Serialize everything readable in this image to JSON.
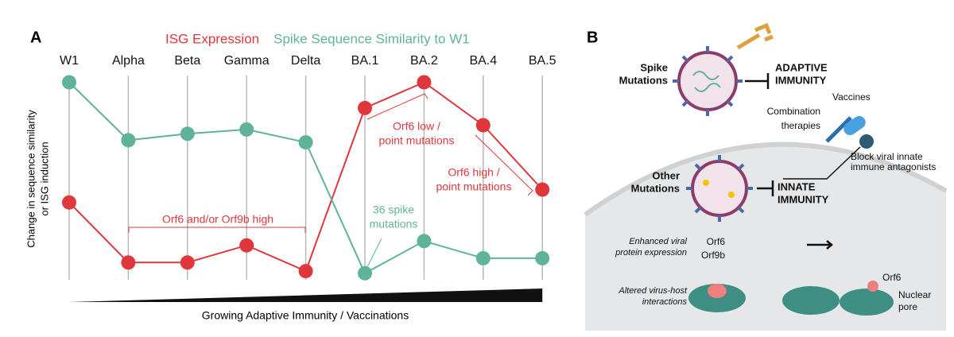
{
  "chart_data": {
    "type": "line",
    "panel_label": "A",
    "categories": [
      "W1",
      "Alpha",
      "Beta",
      "Gamma",
      "Delta",
      "BA.1",
      "BA.2",
      "BA.4",
      "BA.5"
    ],
    "series": [
      {
        "name": "ISG Expression",
        "color": "#e0373c",
        "values": [
          39,
          11,
          11,
          19,
          7,
          83,
          95,
          75,
          45
        ]
      },
      {
        "name": "Spike Sequence Similarity to W1",
        "color": "#5fb39a",
        "values": [
          95,
          68,
          71,
          73,
          67,
          6,
          21,
          13,
          13
        ]
      }
    ],
    "ylim": [
      0,
      100
    ],
    "y_label": [
      "Change in sequence similarity",
      "or ISG induction"
    ],
    "x_label": "Growing Adaptive Immunity / Vaccinations",
    "annotations": [
      {
        "lines": [
          "Orf6 and/or Orf9b high"
        ],
        "color": "#e0373c"
      },
      {
        "lines": [
          "Orf6 low /",
          "point mutations"
        ],
        "color": "#e0373c"
      },
      {
        "lines": [
          "Orf6 high /",
          "point mutations"
        ],
        "color": "#e0373c"
      },
      {
        "lines": [
          "36 spike",
          "mutations"
        ],
        "color": "#5fb39a"
      }
    ]
  },
  "diagram": {
    "panel_label": "B",
    "spike_mutations": [
      "Spike",
      "Mutations"
    ],
    "adaptive_immunity": [
      "ADAPTIVE",
      "IMMUNITY"
    ],
    "vaccines": "Vaccines",
    "combination_therapies": [
      "Combination",
      "therapies"
    ],
    "block_antagonists": [
      "Block viral innate",
      "immune antagonists"
    ],
    "other_mutations": [
      "Other",
      "Mutations"
    ],
    "innate_immunity": [
      "INNATE",
      "IMMUNITY"
    ],
    "enhanced_expression": [
      "Enhanced viral",
      "protein expression"
    ],
    "orf6": "Orf6",
    "orf9b": "Orf9b",
    "altered_interactions": [
      "Altered virus-host",
      "interactions"
    ],
    "orf6_label": "Orf6",
    "nuclear_pore": [
      "Nuclear",
      "pore"
    ]
  }
}
